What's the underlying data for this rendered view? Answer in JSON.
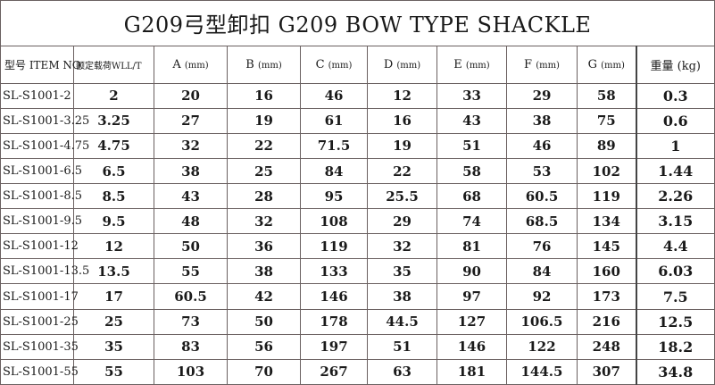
{
  "title": "G209弓型卸扣  G209 BOW TYPE SHACKLE",
  "headers": {
    "item": "型号 ITEM NO.",
    "wll": "额定载荷WLL/T",
    "a": "A",
    "b": "B",
    "c": "C",
    "d": "D",
    "e": "E",
    "f": "F",
    "g": "G",
    "unit": "(mm)",
    "weight": "重量 (kg)"
  },
  "rows": [
    [
      "SL-S1001-2",
      "2",
      "20",
      "16",
      "46",
      "12",
      "33",
      "29",
      "58",
      "0.3"
    ],
    [
      "SL-S1001-3.25",
      "3.25",
      "27",
      "19",
      "61",
      "16",
      "43",
      "38",
      "75",
      "0.6"
    ],
    [
      "SL-S1001-4.75",
      "4.75",
      "32",
      "22",
      "71.5",
      "19",
      "51",
      "46",
      "89",
      "1"
    ],
    [
      "SL-S1001-6.5",
      "6.5",
      "38",
      "25",
      "84",
      "22",
      "58",
      "53",
      "102",
      "1.44"
    ],
    [
      "SL-S1001-8.5",
      "8.5",
      "43",
      "28",
      "95",
      "25.5",
      "68",
      "60.5",
      "119",
      "2.26"
    ],
    [
      "SL-S1001-9.5",
      "9.5",
      "48",
      "32",
      "108",
      "29",
      "74",
      "68.5",
      "134",
      "3.15"
    ],
    [
      "SL-S1001-12",
      "12",
      "50",
      "36",
      "119",
      "32",
      "81",
      "76",
      "145",
      "4.4"
    ],
    [
      "SL-S1001-13.5",
      "13.5",
      "55",
      "38",
      "133",
      "35",
      "90",
      "84",
      "160",
      "6.03"
    ],
    [
      "SL-S1001-17",
      "17",
      "60.5",
      "42",
      "146",
      "38",
      "97",
      "92",
      "173",
      "7.5"
    ],
    [
      "SL-S1001-25",
      "25",
      "73",
      "50",
      "178",
      "44.5",
      "127",
      "106.5",
      "216",
      "12.5"
    ],
    [
      "SL-S1001-35",
      "35",
      "83",
      "56",
      "197",
      "51",
      "146",
      "122",
      "248",
      "18.2"
    ],
    [
      "SL-S1001-55",
      "55",
      "103",
      "70",
      "267",
      "63",
      "181",
      "144.5",
      "307",
      "34.8"
    ]
  ]
}
